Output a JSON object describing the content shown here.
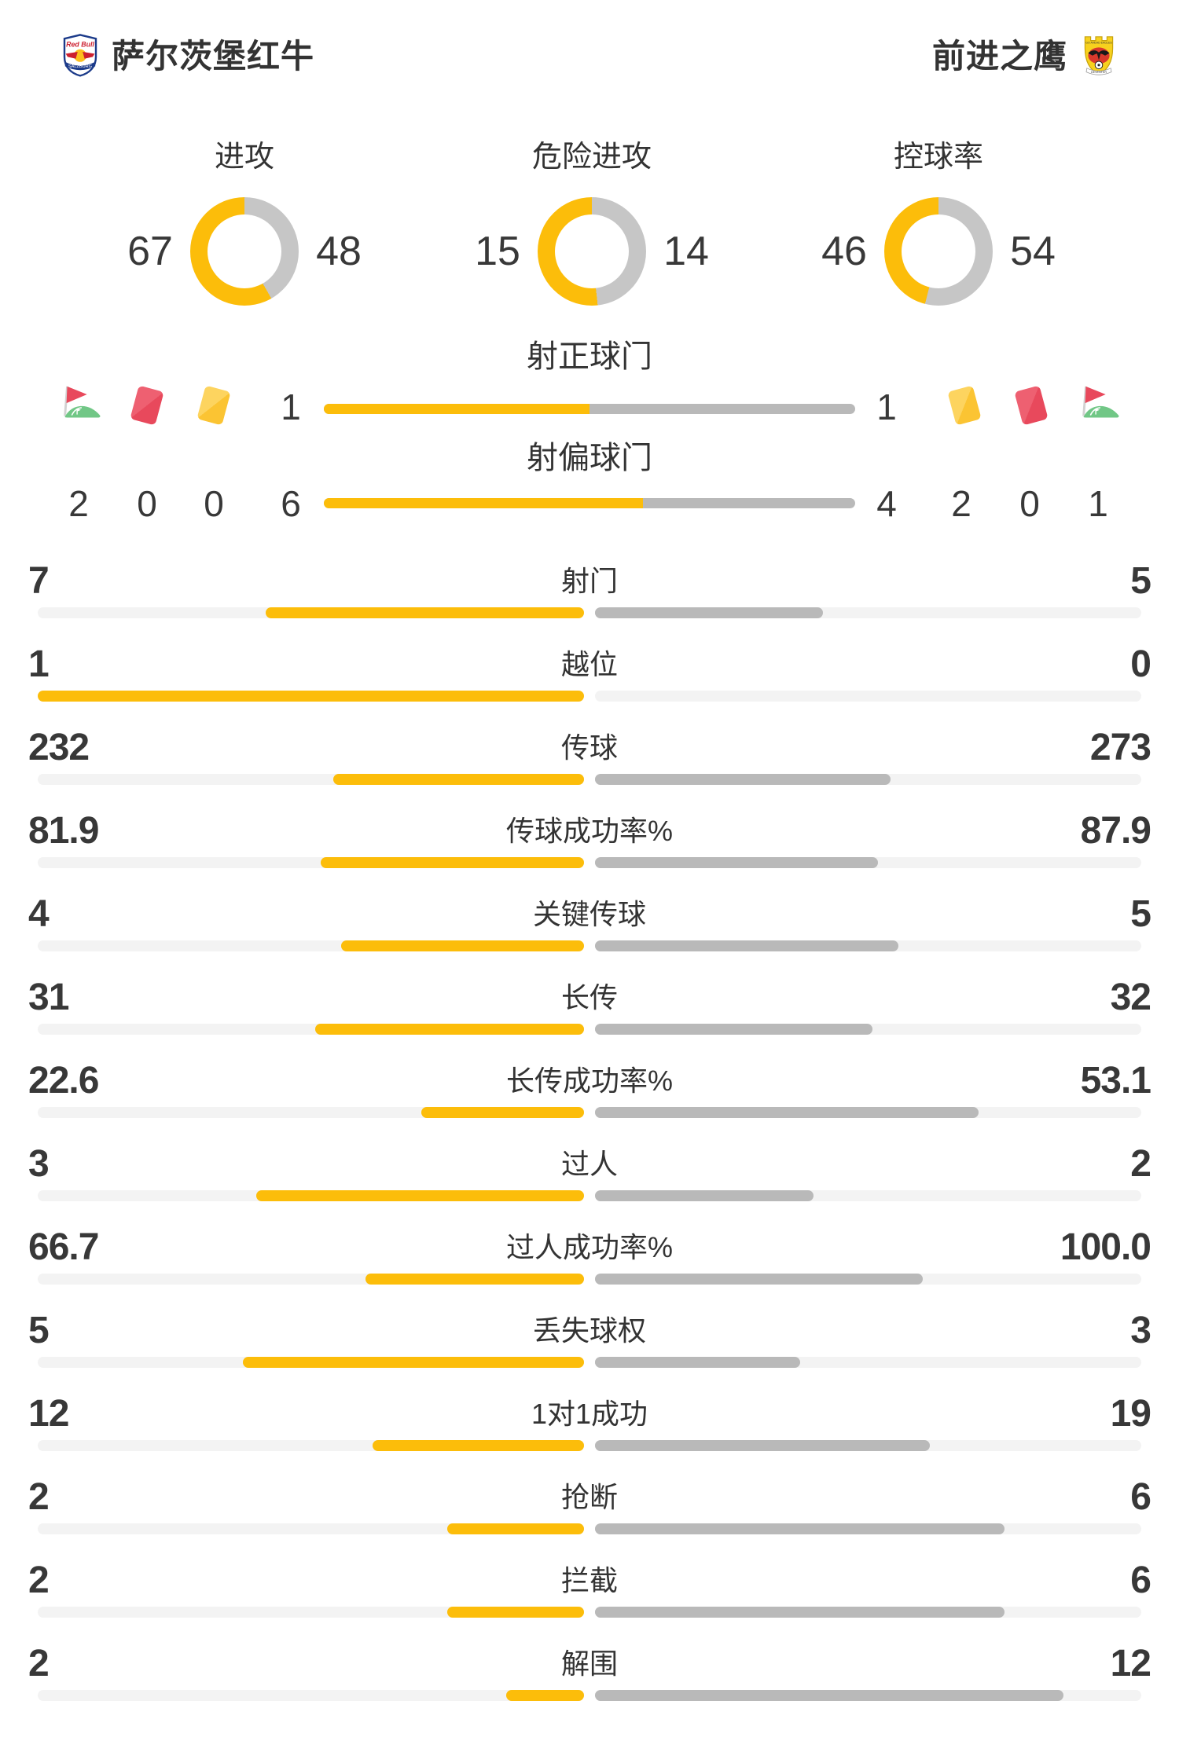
{
  "header": {
    "home": {
      "name": "萨尔茨堡红牛",
      "logo": "red-bull-salzburg-crest"
    },
    "away": {
      "name": "前进之鹰",
      "logo": "go-ahead-eagles-crest"
    }
  },
  "chart_data": {
    "type": "match-stats-dashboard",
    "donuts": [
      {
        "label": "进攻",
        "home": "67",
        "away": "48"
      },
      {
        "label": "危险进攻",
        "home": "15",
        "away": "14"
      },
      {
        "label": "控球率",
        "home": "46",
        "away": "54"
      }
    ],
    "discipline": {
      "home": [
        {
          "icon": "corner-flag-icon",
          "value": "2"
        },
        {
          "icon": "red-card-icon",
          "value": "0"
        },
        {
          "icon": "yellow-card-icon",
          "value": "0"
        }
      ],
      "away": [
        {
          "icon": "yellow-card-icon",
          "value": "2"
        },
        {
          "icon": "red-card-icon",
          "value": "0"
        },
        {
          "icon": "corner-flag-icon",
          "value": "1"
        }
      ]
    },
    "shot_bars": [
      {
        "label": "射正球门",
        "home": "1",
        "away": "1"
      },
      {
        "label": "射偏球门",
        "home": "6",
        "away": "4"
      }
    ],
    "stats": [
      {
        "label": "射门",
        "home": "7",
        "away": "5"
      },
      {
        "label": "越位",
        "home": "1",
        "away": "0"
      },
      {
        "label": "传球",
        "home": "232",
        "away": "273"
      },
      {
        "label": "传球成功率%",
        "home": "81.9",
        "away": "87.9"
      },
      {
        "label": "关键传球",
        "home": "4",
        "away": "5"
      },
      {
        "label": "长传",
        "home": "31",
        "away": "32"
      },
      {
        "label": "长传成功率%",
        "home": "22.6",
        "away": "53.1"
      },
      {
        "label": "过人",
        "home": "3",
        "away": "2"
      },
      {
        "label": "过人成功率%",
        "home": "66.7",
        "away": "100.0"
      },
      {
        "label": "丢失球权",
        "home": "5",
        "away": "3"
      },
      {
        "label": "1对1成功",
        "home": "12",
        "away": "19"
      },
      {
        "label": "抢断",
        "home": "2",
        "away": "6"
      },
      {
        "label": "拦截",
        "home": "2",
        "away": "6"
      },
      {
        "label": "解围",
        "home": "2",
        "away": "12"
      }
    ],
    "layout_hint": "home=yellow left, away=gray right; bar length = value/(home+away) of each half"
  },
  "colors": {
    "home_accent": "#fcbd0a",
    "away_bar": "#b9b9b9",
    "donut_away": "#c6c6c6",
    "track": "#f3f3f3",
    "text": "#333333",
    "red_card": "#e8495c",
    "red_card_light": "#ee6071",
    "yellow_card": "#fbc433",
    "yellow_card_light": "#fdd45f",
    "flag_green": "#71c786"
  }
}
